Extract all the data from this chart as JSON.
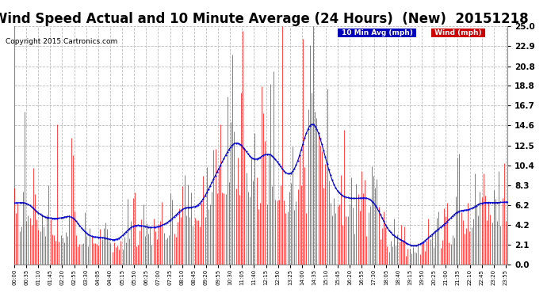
{
  "title": "Wind Speed Actual and 10 Minute Average (24 Hours)  (New)  20151218",
  "copyright": "Copyright 2015 Cartronics.com",
  "legend_10min": "10 Min Avg (mph)",
  "legend_wind": "Wind (mph)",
  "legend_10min_bg": "#0000bb",
  "legend_wind_bg": "#cc0000",
  "ylim": [
    0.0,
    25.0
  ],
  "yticks": [
    0.0,
    2.1,
    4.2,
    6.2,
    8.3,
    10.4,
    12.5,
    14.6,
    16.7,
    18.8,
    20.8,
    22.9,
    25.0
  ],
  "background_color": "#ffffff",
  "plot_bg": "#ffffff",
  "grid_color": "#aaaaaa",
  "title_fontsize": 12,
  "wind_color": "#ff0000",
  "avg_color": "#0000cc",
  "n_points": 288
}
